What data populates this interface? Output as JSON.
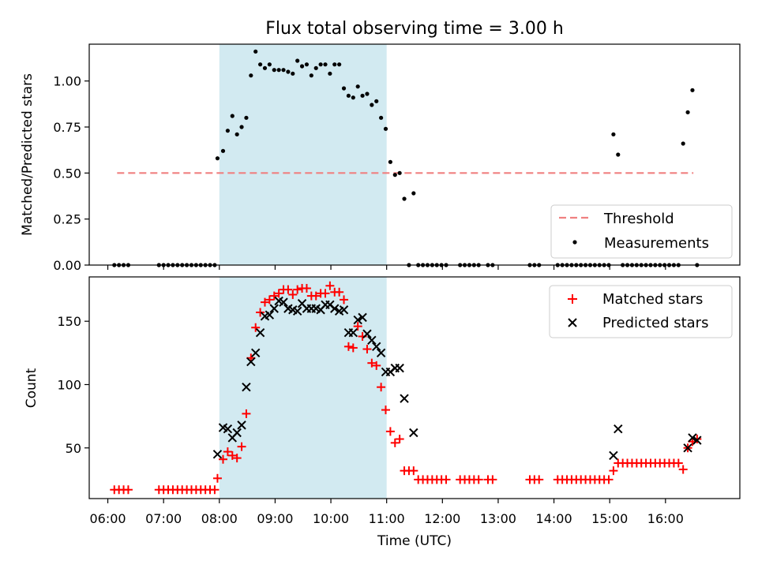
{
  "figure": {
    "title": "Flux total observing time = 3.00 h",
    "xlabel": "Time (UTC)"
  },
  "chart_data": [
    {
      "type": "scatter",
      "ylabel": "Matched/Predicted stars",
      "xlim": [
        "05:40",
        "17:20"
      ],
      "ylim": [
        0,
        1.2
      ],
      "yticks": [
        0.0,
        0.25,
        0.5,
        0.75,
        1.0
      ],
      "ytick_labels": [
        "0.00",
        "0.25",
        "0.50",
        "0.75",
        "1.00"
      ],
      "shaded_interval": [
        "08:00",
        "11:00"
      ],
      "shade_color": "#add8e6",
      "legend_position": "lower right",
      "threshold": {
        "name": "Threshold",
        "y": 0.5,
        "x": [
          "06:10",
          "16:30"
        ],
        "color": "#f08080",
        "style": "dashed"
      },
      "series": [
        {
          "name": "Measurements",
          "marker": "dot",
          "color": "#000000",
          "x": [
            "06:07",
            "06:12",
            "06:17",
            "06:22",
            "06:55",
            "07:00",
            "07:05",
            "07:10",
            "07:15",
            "07:20",
            "07:25",
            "07:30",
            "07:35",
            "07:40",
            "07:45",
            "07:50",
            "07:55",
            "07:58",
            "08:04",
            "08:09",
            "08:14",
            "08:19",
            "08:24",
            "08:29",
            "08:34",
            "08:39",
            "08:44",
            "08:49",
            "08:54",
            "08:59",
            "09:04",
            "09:09",
            "09:14",
            "09:19",
            "09:24",
            "09:29",
            "09:34",
            "09:39",
            "09:44",
            "09:49",
            "09:54",
            "09:59",
            "10:04",
            "10:09",
            "10:14",
            "10:19",
            "10:24",
            "10:29",
            "10:34",
            "10:39",
            "10:44",
            "10:49",
            "10:54",
            "10:59",
            "11:04",
            "11:09",
            "11:14",
            "11:19",
            "11:24",
            "11:29",
            "11:34",
            "11:39",
            "11:44",
            "11:49",
            "11:54",
            "11:59",
            "12:04",
            "12:19",
            "12:24",
            "12:29",
            "12:34",
            "12:39",
            "12:49",
            "12:54",
            "13:34",
            "13:39",
            "13:44",
            "14:04",
            "14:09",
            "14:14",
            "14:19",
            "14:24",
            "14:29",
            "14:34",
            "14:39",
            "14:44",
            "14:49",
            "14:54",
            "14:59",
            "15:04",
            "15:09",
            "15:14",
            "15:19",
            "15:24",
            "15:29",
            "15:34",
            "15:39",
            "15:44",
            "15:49",
            "15:54",
            "15:59",
            "16:04",
            "16:09",
            "16:14",
            "16:19",
            "16:24",
            "16:29",
            "16:34"
          ],
          "y": [
            0,
            0,
            0,
            0,
            0,
            0,
            0,
            0,
            0,
            0,
            0,
            0,
            0,
            0,
            0,
            0,
            0,
            0.58,
            0.62,
            0.73,
            0.81,
            0.71,
            0.75,
            0.8,
            1.03,
            1.16,
            1.09,
            1.07,
            1.09,
            1.06,
            1.06,
            1.06,
            1.05,
            1.04,
            1.11,
            1.08,
            1.09,
            1.03,
            1.07,
            1.09,
            1.09,
            1.04,
            1.09,
            1.09,
            0.96,
            0.92,
            0.91,
            0.97,
            0.92,
            0.93,
            0.87,
            0.89,
            0.8,
            0.74,
            0.56,
            0.49,
            0.5,
            0.36,
            0,
            0.39,
            0,
            0,
            0,
            0,
            0,
            0,
            0,
            0,
            0,
            0,
            0,
            0,
            0,
            0,
            0,
            0,
            0,
            0,
            0,
            0,
            0,
            0,
            0,
            0,
            0,
            0,
            0,
            0,
            0,
            0.71,
            0.6,
            0,
            0,
            0,
            0,
            0,
            0,
            0,
            0,
            0,
            0,
            0,
            0,
            0,
            0.66,
            0.83,
            0.95,
            0
          ]
        }
      ]
    },
    {
      "type": "scatter",
      "ylabel": "Count",
      "xlim": [
        "05:40",
        "17:20"
      ],
      "ylim": [
        10,
        185
      ],
      "yticks": [
        50,
        100,
        150
      ],
      "ytick_labels": [
        "50",
        "100",
        "150"
      ],
      "xticks": [
        "06:00",
        "07:00",
        "08:00",
        "09:00",
        "10:00",
        "11:00",
        "12:00",
        "13:00",
        "14:00",
        "15:00",
        "16:00"
      ],
      "shaded_interval": [
        "08:00",
        "11:00"
      ],
      "shade_color": "#add8e6",
      "legend_position": "upper right",
      "series": [
        {
          "name": "Matched stars",
          "marker": "plus",
          "color": "#ff0000",
          "x": [
            "06:07",
            "06:12",
            "06:17",
            "06:22",
            "06:55",
            "07:00",
            "07:05",
            "07:10",
            "07:15",
            "07:20",
            "07:25",
            "07:30",
            "07:35",
            "07:40",
            "07:45",
            "07:50",
            "07:55",
            "07:58",
            "08:04",
            "08:09",
            "08:14",
            "08:19",
            "08:24",
            "08:29",
            "08:34",
            "08:39",
            "08:44",
            "08:49",
            "08:54",
            "08:59",
            "09:04",
            "09:09",
            "09:14",
            "09:19",
            "09:24",
            "09:29",
            "09:34",
            "09:39",
            "09:44",
            "09:49",
            "09:54",
            "09:59",
            "10:04",
            "10:09",
            "10:14",
            "10:19",
            "10:24",
            "10:29",
            "10:34",
            "10:39",
            "10:44",
            "10:49",
            "10:54",
            "10:59",
            "11:04",
            "11:09",
            "11:14",
            "11:19",
            "11:24",
            "11:29",
            "11:34",
            "11:39",
            "11:44",
            "11:49",
            "11:54",
            "11:59",
            "12:04",
            "12:19",
            "12:24",
            "12:29",
            "12:34",
            "12:39",
            "12:49",
            "12:54",
            "13:34",
            "13:39",
            "13:44",
            "14:04",
            "14:09",
            "14:14",
            "14:19",
            "14:24",
            "14:29",
            "14:34",
            "14:39",
            "14:44",
            "14:49",
            "14:54",
            "14:59",
            "15:04",
            "15:09",
            "15:14",
            "15:19",
            "15:24",
            "15:29",
            "15:34",
            "15:39",
            "15:44",
            "15:49",
            "15:54",
            "15:59",
            "16:04",
            "16:09",
            "16:14",
            "16:19",
            "16:24",
            "16:29",
            "16:34"
          ],
          "y": [
            17,
            17,
            17,
            17,
            17,
            17,
            17,
            17,
            17,
            17,
            17,
            17,
            17,
            17,
            17,
            17,
            17,
            26,
            41,
            47,
            44,
            42,
            51,
            77,
            121,
            145,
            157,
            165,
            167,
            170,
            172,
            175,
            175,
            171,
            175,
            176,
            176,
            170,
            170,
            172,
            172,
            178,
            173,
            173,
            167,
            130,
            129,
            146,
            138,
            128,
            117,
            115,
            98,
            80,
            63,
            54,
            57,
            32,
            32,
            32,
            25,
            25,
            25,
            25,
            25,
            25,
            25,
            25,
            25,
            25,
            25,
            25,
            25,
            25,
            25,
            25,
            25,
            25,
            25,
            25,
            25,
            25,
            25,
            25,
            25,
            25,
            25,
            25,
            25,
            32,
            38,
            38,
            38,
            38,
            38,
            38,
            38,
            38,
            38,
            38,
            38,
            38,
            38,
            38,
            33,
            50,
            55,
            57
          ]
        },
        {
          "name": "Predicted stars",
          "marker": "x",
          "color": "#000000",
          "x": [
            "07:58",
            "08:04",
            "08:09",
            "08:14",
            "08:19",
            "08:24",
            "08:29",
            "08:34",
            "08:39",
            "08:44",
            "08:49",
            "08:54",
            "08:59",
            "09:04",
            "09:09",
            "09:14",
            "09:19",
            "09:24",
            "09:29",
            "09:34",
            "09:39",
            "09:44",
            "09:49",
            "09:54",
            "09:59",
            "10:04",
            "10:09",
            "10:14",
            "10:19",
            "10:24",
            "10:29",
            "10:34",
            "10:39",
            "10:44",
            "10:49",
            "10:54",
            "10:59",
            "11:04",
            "11:09",
            "11:14",
            "11:19",
            "11:29",
            "15:04",
            "15:09",
            "16:24",
            "16:29",
            "16:34"
          ],
          "y": [
            45,
            66,
            65,
            58,
            62,
            68,
            98,
            118,
            125,
            141,
            154,
            155,
            160,
            166,
            165,
            160,
            159,
            158,
            164,
            160,
            160,
            160,
            159,
            163,
            163,
            160,
            158,
            159,
            141,
            141,
            151,
            153,
            140,
            135,
            130,
            125,
            110,
            110,
            113,
            113,
            89,
            62,
            44,
            65,
            50,
            58,
            56
          ]
        }
      ]
    }
  ]
}
